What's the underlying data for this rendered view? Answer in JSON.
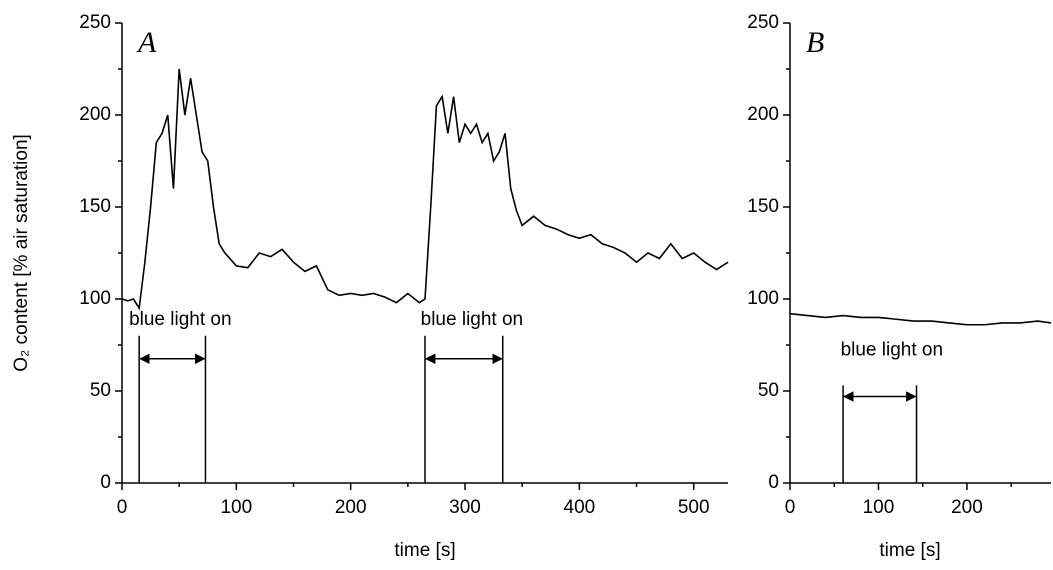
{
  "chart_data": [
    {
      "type": "line",
      "panel_label": "A",
      "xlabel": "time [s]",
      "ylabel": "O₂ content [% air saturation]",
      "xlim": [
        0,
        530
      ],
      "xticks": [
        0,
        100,
        200,
        300,
        400,
        500
      ],
      "ylim": [
        0,
        250
      ],
      "yticks": [
        0,
        50,
        100,
        150,
        200,
        250
      ],
      "x": [
        0,
        5,
        10,
        15,
        20,
        25,
        30,
        35,
        40,
        45,
        50,
        55,
        60,
        65,
        70,
        75,
        80,
        85,
        90,
        100,
        110,
        120,
        130,
        140,
        150,
        160,
        170,
        180,
        190,
        200,
        210,
        220,
        230,
        240,
        250,
        260,
        265,
        270,
        275,
        280,
        285,
        290,
        295,
        300,
        305,
        310,
        315,
        320,
        325,
        330,
        335,
        340,
        345,
        350,
        360,
        370,
        380,
        390,
        400,
        410,
        420,
        430,
        440,
        450,
        460,
        470,
        480,
        490,
        500,
        510,
        520,
        530
      ],
      "series": [
        {
          "color": "#000000",
          "values": [
            100,
            99,
            100,
            95,
            120,
            150,
            185,
            190,
            200,
            160,
            225,
            200,
            220,
            200,
            180,
            175,
            150,
            130,
            125,
            118,
            117,
            125,
            123,
            127,
            120,
            115,
            118,
            105,
            102,
            103,
            102,
            103,
            101,
            98,
            103,
            98,
            100,
            150,
            205,
            210,
            190,
            210,
            185,
            195,
            190,
            195,
            185,
            190,
            175,
            180,
            190,
            160,
            148,
            140,
            145,
            140,
            138,
            135,
            133,
            135,
            130,
            128,
            125,
            120,
            125,
            122,
            130,
            122,
            125,
            120,
            116,
            120
          ]
        }
      ],
      "light_intervals": [
        [
          15,
          73
        ],
        [
          265,
          333
        ]
      ],
      "annotation": "blue light on"
    },
    {
      "type": "line",
      "panel_label": "B",
      "xlabel": "time [s]",
      "xlim": [
        0,
        295
      ],
      "xticks": [
        0,
        100,
        200
      ],
      "ylim": [
        0,
        250
      ],
      "yticks": [
        0,
        50,
        100,
        150,
        200,
        250
      ],
      "x": [
        0,
        20,
        40,
        60,
        80,
        100,
        120,
        140,
        160,
        180,
        200,
        220,
        240,
        260,
        280,
        295
      ],
      "series": [
        {
          "color": "#000000",
          "values": [
            92,
            91,
            90,
            91,
            90,
            90,
            89,
            88,
            88,
            87,
            86,
            86,
            87,
            87,
            88,
            87
          ]
        }
      ],
      "light_intervals": [
        [
          60,
          143
        ]
      ],
      "annotation": "blue light on"
    }
  ]
}
